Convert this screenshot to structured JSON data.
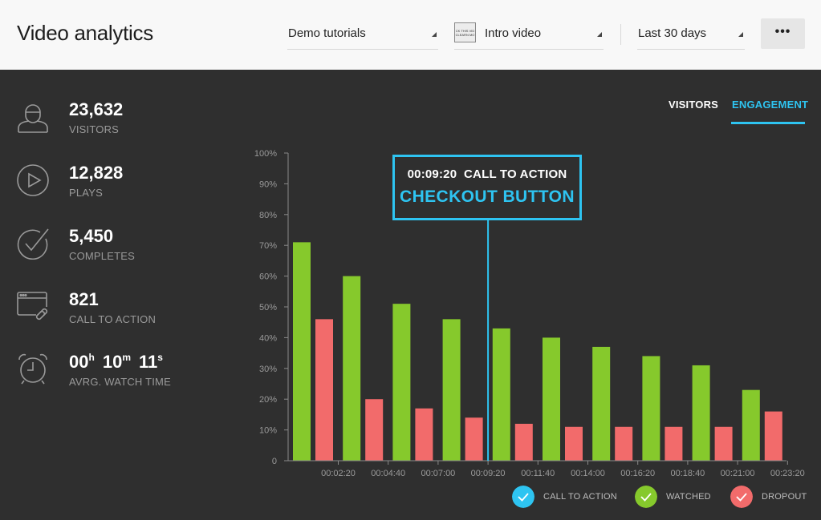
{
  "header": {
    "title": "Video analytics",
    "project_select": "Demo tutorials",
    "video_select": "Intro video",
    "video_thumb_text": "CK THIS VID CLEARN MO",
    "range_select": "Last 30 days",
    "more_label": "•••"
  },
  "stats": {
    "visitors": {
      "value": "23,632",
      "label": "VISITORS"
    },
    "plays": {
      "value": "12,828",
      "label": "PLAYS"
    },
    "completes": {
      "value": "5,450",
      "label": "COMPLETES"
    },
    "cta": {
      "value": "821",
      "label": "CALL TO ACTION"
    },
    "watch_time": {
      "h": "00",
      "h_unit": "h",
      "m": "10",
      "m_unit": "m",
      "s": "11",
      "s_unit": "s",
      "label": "AVRG. WATCH TIME"
    }
  },
  "tabs": {
    "visitors": "VISITORS",
    "engagement": "ENGAGEMENT"
  },
  "callout": {
    "time": "00:09:20",
    "type": "CALL TO ACTION",
    "title": "CHECKOUT BUTTON"
  },
  "legend": {
    "cta": "CALL TO ACTION",
    "watched": "WATCHED",
    "dropout": "DROPOUT"
  },
  "colors": {
    "accent": "#2ec4f1",
    "watched": "#86c92c",
    "dropout": "#f26b6b"
  },
  "chart_data": {
    "type": "bar",
    "x_tick_labels": [
      "00:02:20",
      "00:04:40",
      "00:07:00",
      "00:09:20",
      "00:11:40",
      "00:14:00",
      "00:16:20",
      "00:18:40",
      "00:21:00",
      "00:23:20"
    ],
    "y_tick_labels": [
      "0",
      "10%",
      "20%",
      "30%",
      "40%",
      "50%",
      "60%",
      "70%",
      "80%",
      "90%",
      "100%"
    ],
    "ylim": [
      0,
      100
    ],
    "series": [
      {
        "name": "WATCHED",
        "values": [
          71,
          60,
          51,
          46,
          43,
          40,
          37,
          34,
          31,
          23
        ]
      },
      {
        "name": "DROPOUT",
        "values": [
          46,
          20,
          17,
          14,
          12,
          11,
          11,
          11,
          11,
          16
        ]
      }
    ],
    "call_to_action_at": "00:09:20",
    "xlabel": "",
    "ylabel": ""
  }
}
